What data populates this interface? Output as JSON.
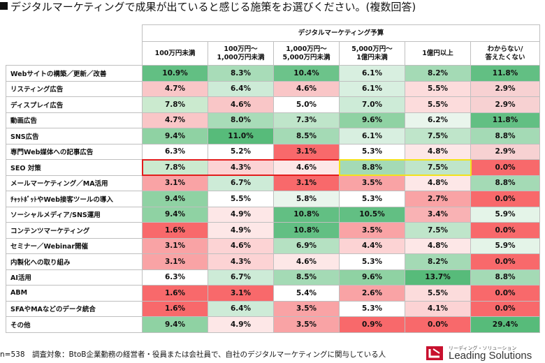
{
  "title": "■デジタルマーケティングで成果が出ていると感じる施策をお選びください。(複数回答)",
  "header_group": "デジタルマーケティング予算",
  "footnote": "n=538　調査対象：BtoB企業勤務の経営者・役員または会社員で、自社のデジタルマーケティングに関与している人",
  "logo": {
    "sub": "リーディング・ソリューション",
    "name": "Leading Solutions"
  },
  "colors": {
    "high": "#57bb7a",
    "mid": "#ffffff",
    "low": "#f8696b",
    "highlight_red": "#e21d1d",
    "highlight_yellow": "#f2e21a"
  },
  "highlights": [
    {
      "row": "SEO 対策",
      "columns": [
        "100万円未満",
        "100万円〜\n1,000万円未満",
        "1,000万円〜\n5,000万円未満"
      ],
      "color": "red"
    },
    {
      "row": "SEO 対策",
      "columns": [
        "5,000万円〜\n1億円未満",
        "1億円以上"
      ],
      "color": "yellow"
    }
  ],
  "chart_data": {
    "type": "heatmap",
    "title": "デジタルマーケティングで成果が出ていると感じる施策をお選びください。(複数回答)",
    "column_group": "デジタルマーケティング予算",
    "unit": "%",
    "columns": [
      "100万円未満",
      "100万円〜\n1,000万円未満",
      "1,000万円〜\n5,000万円未満",
      "5,000万円〜\n1億円未満",
      "1億円以上",
      "わからない/\n答えたくない"
    ],
    "rows": [
      "Webサイトの構築／更新／改善",
      "リスティング広告",
      "ディスプレイ広告",
      "動画広告",
      "SNS広告",
      "専門Web媒体への記事広告",
      "SEO 対策",
      "メールマーケティング／MA活用",
      "ﾁｬｯﾄﾎﾞｯﾄやWeb接客ツールの導入",
      "ソーシャルメディア/SNS運用",
      "コンテンツマーケティング",
      "セミナー／Webinar開催",
      "内製化への取り組み",
      "AI活用",
      "ABM",
      "SFAやMAなどのデータ統合",
      "その他"
    ],
    "values": [
      [
        10.9,
        8.3,
        10.4,
        6.1,
        8.2,
        11.8
      ],
      [
        4.7,
        6.4,
        4.6,
        6.1,
        5.5,
        2.9
      ],
      [
        7.8,
        4.6,
        5.0,
        7.0,
        5.5,
        2.9
      ],
      [
        4.7,
        8.0,
        7.3,
        9.6,
        6.2,
        11.8
      ],
      [
        9.4,
        11.0,
        8.5,
        6.1,
        7.5,
        8.8
      ],
      [
        6.3,
        5.2,
        3.1,
        5.3,
        4.8,
        2.9
      ],
      [
        7.8,
        4.3,
        4.6,
        8.8,
        7.5,
        0.0
      ],
      [
        3.1,
        6.7,
        3.1,
        3.5,
        4.8,
        8.8
      ],
      [
        9.4,
        5.5,
        5.8,
        5.3,
        2.7,
        0.0
      ],
      [
        9.4,
        4.9,
        10.8,
        10.5,
        3.4,
        5.9
      ],
      [
        1.6,
        4.9,
        10.8,
        3.5,
        7.5,
        0.0
      ],
      [
        3.1,
        4.6,
        6.9,
        4.4,
        4.8,
        5.9
      ],
      [
        3.1,
        4.3,
        4.6,
        5.3,
        8.2,
        0.0
      ],
      [
        6.3,
        6.7,
        8.5,
        9.6,
        13.7,
        8.8
      ],
      [
        1.6,
        3.1,
        5.4,
        2.6,
        5.5,
        0.0
      ],
      [
        1.6,
        6.4,
        3.5,
        5.3,
        4.1,
        0.0
      ],
      [
        9.4,
        4.9,
        3.5,
        0.9,
        0.0,
        29.4
      ]
    ],
    "cell_fills": [
      [
        "#62bf83",
        "#a8dcb8",
        "#6cc38a",
        "#d8efe0",
        "#a4dab5",
        "#62bf83"
      ],
      [
        "#f9c6c7",
        "#cdebd7",
        "#f9c6c7",
        "#d8efe0",
        "#fcdcdc",
        "#f7d1d2"
      ],
      [
        "#cbeacf",
        "#f9c6c7",
        "#ffffff",
        "#cdebd7",
        "#fcdcdc",
        "#f7d1d2"
      ],
      [
        "#f9c6c7",
        "#a8dcb8",
        "#bfe5ca",
        "#8fd2a3",
        "#e9f5ec",
        "#62bf83"
      ],
      [
        "#8fd2a3",
        "#57bb7a",
        "#a4dab5",
        "#d8efe0",
        "#bfe5ca",
        "#a4dab5"
      ],
      [
        "#ffffff",
        "#ffffff",
        "#f8696b",
        "#ffffff",
        "#fde7e7",
        "#f7d1d2"
      ],
      [
        "#cbeacf",
        "#fcd3d4",
        "#fde7e7",
        "#a4dab5",
        "#bfe5ca",
        "#f8696b"
      ],
      [
        "#f9a3a5",
        "#cdebd7",
        "#f8696b",
        "#f9a3a5",
        "#fde7e7",
        "#a4dab5"
      ],
      [
        "#8fd2a3",
        "#ffffff",
        "#e9f5ec",
        "#ffffff",
        "#f9a3a5",
        "#f8696b"
      ],
      [
        "#8fd2a3",
        "#fde7e7",
        "#62bf83",
        "#62bf83",
        "#f9b2b4",
        "#e4f4e8"
      ],
      [
        "#f8696b",
        "#fde7e7",
        "#62bf83",
        "#f9a3a5",
        "#bfe5ca",
        "#f8696b"
      ],
      [
        "#f9a3a5",
        "#fcd3d4",
        "#b5e1c2",
        "#fcd3d4",
        "#fde7e7",
        "#e4f4e8"
      ],
      [
        "#f9a3a5",
        "#fcd3d4",
        "#fde7e7",
        "#ffffff",
        "#a4dab5",
        "#f8696b"
      ],
      [
        "#ffffff",
        "#cdebd7",
        "#a4dab5",
        "#8fd2a3",
        "#57bb7a",
        "#a4dab5"
      ],
      [
        "#f8696b",
        "#f8696b",
        "#ffffff",
        "#f9a3a5",
        "#fcdcdc",
        "#f8696b"
      ],
      [
        "#f8696b",
        "#cdebd7",
        "#f9a3a5",
        "#ffffff",
        "#fcd3d4",
        "#f8696b"
      ],
      [
        "#8fd2a3",
        "#fde7e7",
        "#f9a3a5",
        "#f8696b",
        "#f8696b",
        "#57bb7a"
      ]
    ]
  }
}
